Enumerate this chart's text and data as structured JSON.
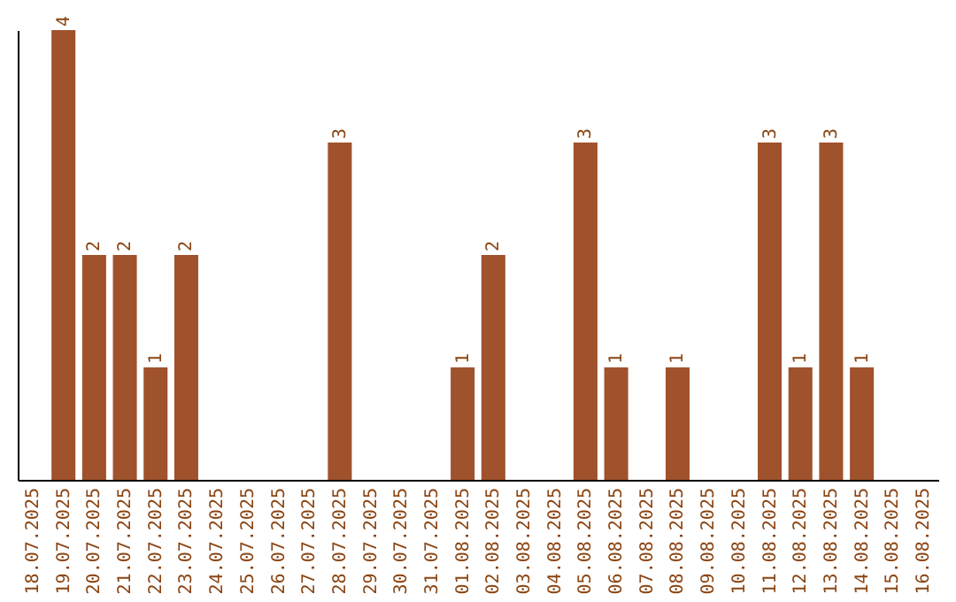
{
  "chart_data": {
    "type": "bar",
    "categories": [
      "18.07.2025",
      "19.07.2025",
      "20.07.2025",
      "21.07.2025",
      "22.07.2025",
      "23.07.2025",
      "24.07.2025",
      "25.07.2025",
      "26.07.2025",
      "27.07.2025",
      "28.07.2025",
      "29.07.2025",
      "30.07.2025",
      "31.07.2025",
      "01.08.2025",
      "02.08.2025",
      "03.08.2025",
      "04.08.2025",
      "05.08.2025",
      "06.08.2025",
      "07.08.2025",
      "08.08.2025",
      "09.08.2025",
      "10.08.2025",
      "11.08.2025",
      "12.08.2025",
      "13.08.2025",
      "14.08.2025",
      "15.08.2025",
      "16.08.2025"
    ],
    "values": [
      0,
      4,
      2,
      2,
      1,
      2,
      0,
      0,
      0,
      0,
      3,
      0,
      0,
      0,
      1,
      2,
      0,
      0,
      3,
      1,
      0,
      1,
      0,
      0,
      3,
      1,
      3,
      1,
      0,
      0
    ],
    "value_labels": [
      null,
      "4",
      "2",
      "2",
      "1",
      "2",
      null,
      null,
      null,
      null,
      "3",
      null,
      null,
      null,
      "1",
      "2",
      null,
      null,
      "3",
      "1",
      null,
      "1",
      null,
      null,
      "3",
      "1",
      "3",
      "1",
      null,
      null
    ],
    "color": "#a0522d",
    "grid": false,
    "tick_labels": "x"
  }
}
